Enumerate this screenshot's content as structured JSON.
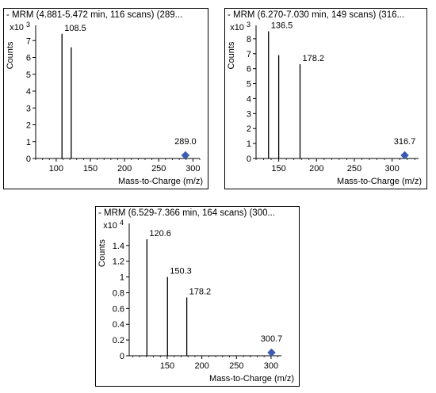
{
  "colors": {
    "line": "#000000",
    "marker": "#3d5bb0"
  },
  "chart_data": [
    {
      "type": "bar",
      "title": "- MRM (4.881-5.472 min, 116 scans) (289...",
      "ylabel": "Counts",
      "exponent_prefix": "x10",
      "exponent": "3",
      "xlabel": "Mass-to-Charge (m/z)",
      "xlim": [
        70,
        310
      ],
      "ylim": [
        0,
        8
      ],
      "xticks": [
        100,
        150,
        200,
        250,
        300
      ],
      "yticks": [
        0,
        1,
        2,
        3,
        4,
        5,
        6,
        7
      ],
      "peaks": [
        {
          "x": 108.5,
          "y": 7.4,
          "label": "108.5"
        },
        {
          "x": 122,
          "y": 6.6,
          "label": ""
        }
      ],
      "precursor": {
        "x": 289.0,
        "label": "289.0"
      },
      "grid": false
    },
    {
      "type": "bar",
      "title": "- MRM (6.270-7.030 min, 149 scans) (316...",
      "ylabel": "Counts",
      "exponent_prefix": "x10",
      "exponent": "3",
      "xlabel": "Mass-to-Charge (m/z)",
      "xlim": [
        120,
        335
      ],
      "ylim": [
        0,
        9
      ],
      "xticks": [
        150,
        200,
        250,
        300
      ],
      "yticks": [
        0,
        1,
        2,
        3,
        4,
        5,
        6,
        7,
        8
      ],
      "peaks": [
        {
          "x": 136.5,
          "y": 8.5,
          "label": "136.5"
        },
        {
          "x": 150,
          "y": 6.9,
          "label": ""
        },
        {
          "x": 178.2,
          "y": 6.3,
          "label": "178.2"
        }
      ],
      "precursor": {
        "x": 316.7,
        "label": "316.7"
      },
      "grid": false
    },
    {
      "type": "bar",
      "title": "- MRM (6.529-7.366 min, 164 scans) (300...",
      "ylabel": "Counts",
      "exponent_prefix": "x10",
      "exponent": "4",
      "xlabel": "Mass-to-Charge (m/z)",
      "xlim": [
        95,
        315
      ],
      "ylim": [
        0,
        1.7
      ],
      "xticks": [
        150,
        200,
        250,
        300
      ],
      "yticks": [
        0,
        0.2,
        0.4,
        0.6,
        0.8,
        1,
        1.2,
        1.4
      ],
      "peaks": [
        {
          "x": 120.6,
          "y": 1.48,
          "label": "120.6"
        },
        {
          "x": 150.3,
          "y": 1.0,
          "label": "150.3"
        },
        {
          "x": 178.2,
          "y": 0.74,
          "label": "178.2"
        }
      ],
      "precursor": {
        "x": 300.7,
        "label": "300.7"
      },
      "grid": false
    }
  ]
}
